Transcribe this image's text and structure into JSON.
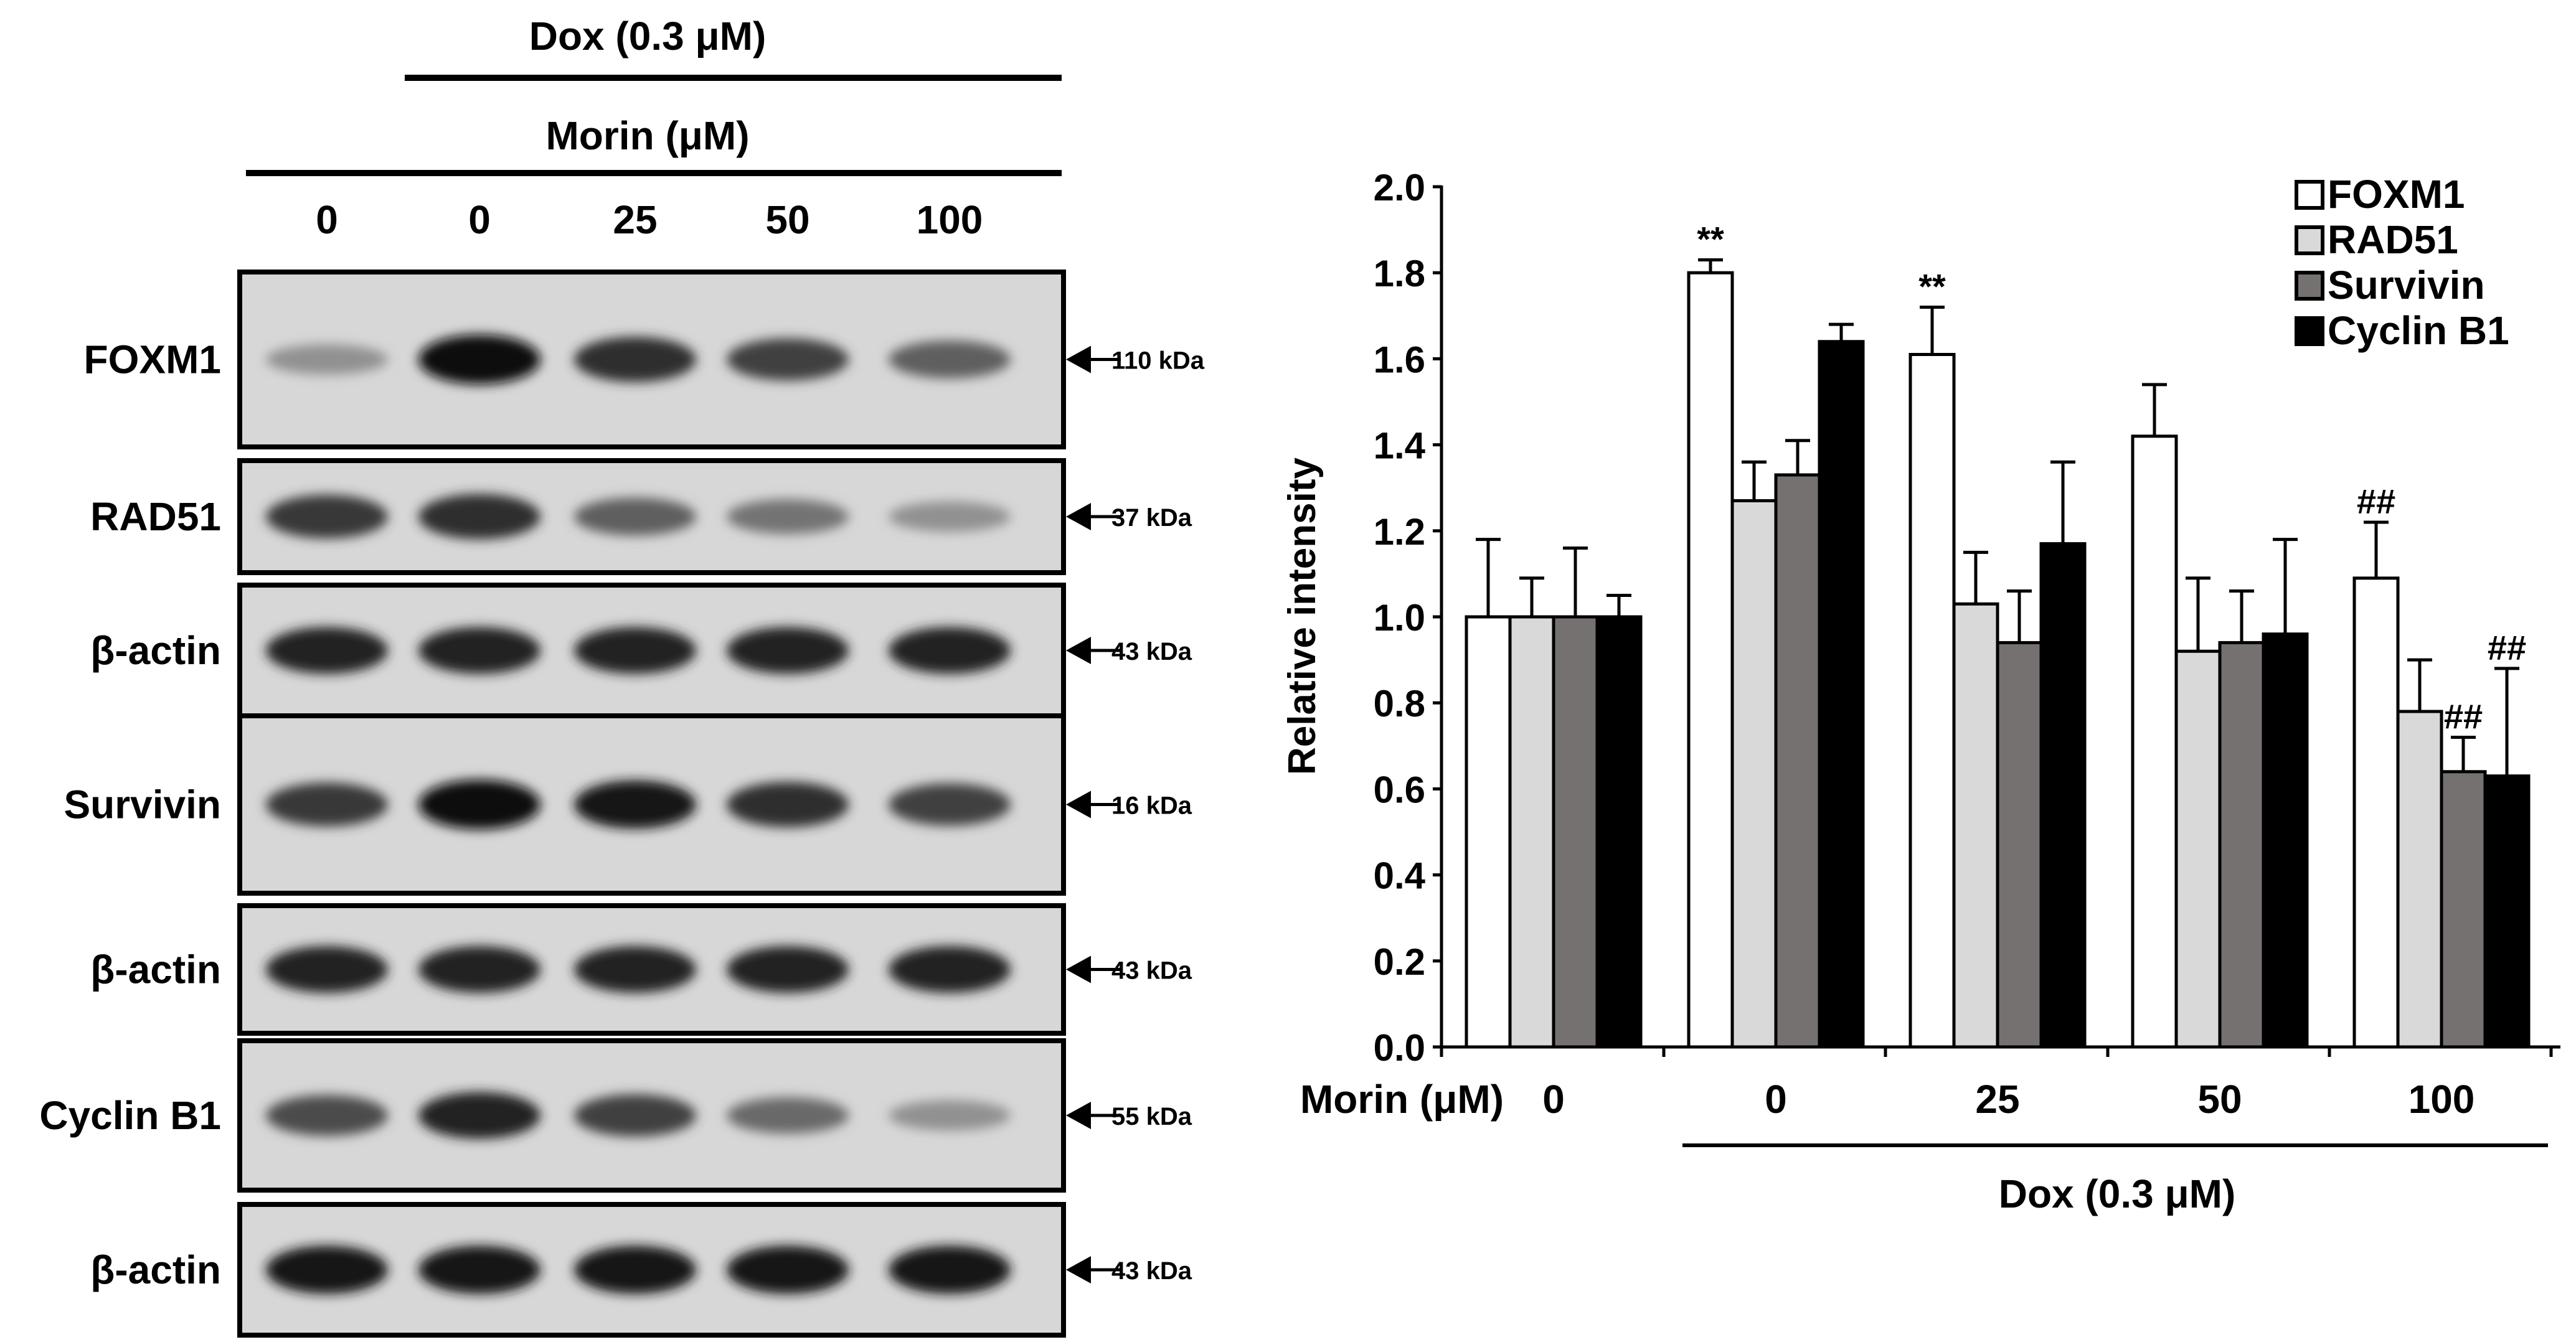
{
  "blot": {
    "header_dox": "Dox (0.3 μM)",
    "header_morin": "Morin (μM)",
    "lanes": [
      "0",
      "0",
      "25",
      "50",
      "100"
    ],
    "panels": [
      {
        "label": "FOXM1",
        "marker": "110 kDa",
        "intensity": [
          0.35,
          1.0,
          0.85,
          0.75,
          0.6
        ]
      },
      {
        "label": "RAD51",
        "marker": "37 kDa",
        "intensity": [
          0.8,
          0.85,
          0.6,
          0.5,
          0.35
        ]
      },
      {
        "label": "β-actin",
        "marker": "43 kDa",
        "intensity": [
          0.9,
          0.9,
          0.9,
          0.9,
          0.9
        ]
      },
      {
        "label": "Survivin",
        "marker": "16 kDa",
        "intensity": [
          0.8,
          1.0,
          0.95,
          0.85,
          0.75
        ]
      },
      {
        "label": "β-actin",
        "marker": "43 kDa",
        "intensity": [
          0.9,
          0.9,
          0.9,
          0.9,
          0.9
        ]
      },
      {
        "label": "Cyclin B1",
        "marker": "55 kDa",
        "intensity": [
          0.7,
          0.9,
          0.75,
          0.55,
          0.35
        ]
      },
      {
        "label": "β-actin",
        "marker": "43 kDa",
        "intensity": [
          0.95,
          0.95,
          0.95,
          0.95,
          0.95
        ]
      }
    ]
  },
  "chart_data": {
    "type": "bar",
    "ylabel": "Relative intensity",
    "ylim": [
      0,
      2.0
    ],
    "yticks": [
      "0.0",
      "0.2",
      "0.4",
      "0.6",
      "0.8",
      "1.0",
      "1.2",
      "1.4",
      "1.6",
      "1.8",
      "2.0"
    ],
    "x_axis_label": "Morin (μM)",
    "categories": [
      "0",
      "0",
      "25",
      "50",
      "100"
    ],
    "group_label": "Dox (0.3 μM)",
    "legend_position": "top-right",
    "series": [
      {
        "name": "FOXM1",
        "color": "#ffffff",
        "values": [
          1.0,
          1.8,
          1.61,
          1.42,
          1.09
        ],
        "errors": [
          0.18,
          0.03,
          0.11,
          0.12,
          0.13
        ],
        "annotations": [
          "",
          "**",
          "**",
          "",
          "##"
        ]
      },
      {
        "name": "RAD51",
        "color": "#d9d9d9",
        "values": [
          1.0,
          1.27,
          1.03,
          0.92,
          0.78
        ],
        "errors": [
          0.09,
          0.09,
          0.12,
          0.17,
          0.12
        ],
        "annotations": [
          "",
          "",
          "",
          "",
          ""
        ]
      },
      {
        "name": "Survivin",
        "color": "#767171",
        "values": [
          1.0,
          1.33,
          0.94,
          0.94,
          0.64
        ],
        "errors": [
          0.16,
          0.08,
          0.12,
          0.12,
          0.08
        ],
        "annotations": [
          "",
          "",
          "",
          "",
          "##"
        ]
      },
      {
        "name": "Cyclin B1",
        "color": "#000000",
        "values": [
          1.0,
          1.64,
          1.17,
          0.96,
          0.63
        ],
        "errors": [
          0.05,
          0.04,
          0.19,
          0.22,
          0.25
        ],
        "annotations": [
          "",
          "",
          "",
          "",
          "##"
        ]
      }
    ]
  }
}
